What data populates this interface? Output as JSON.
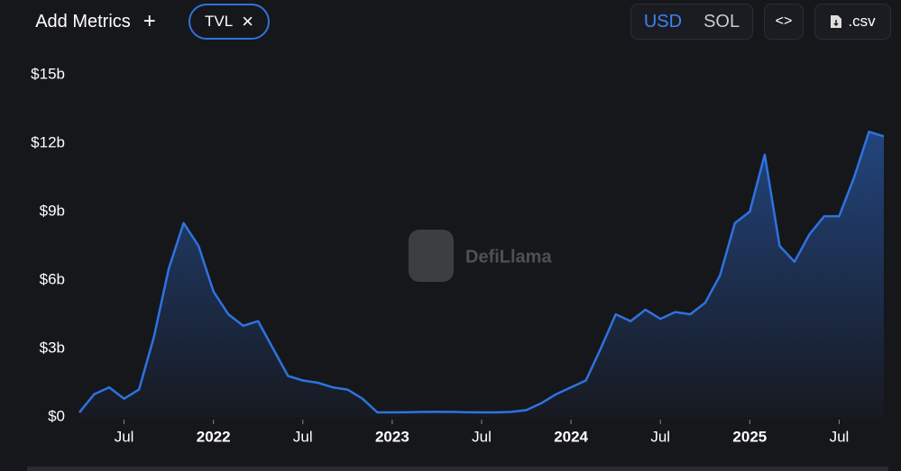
{
  "toolbar": {
    "add_metrics": "Add Metrics",
    "add_icon": "+",
    "metric": "TVL",
    "remove_icon": "×",
    "currencies": [
      "USD",
      "SOL"
    ],
    "embed": "<>",
    "csv": ".csv"
  },
  "watermark": "DefiLlama",
  "chart_data": {
    "type": "area",
    "x": [
      "2021-04",
      "2021-05",
      "2021-06",
      "2021-07",
      "2021-08",
      "2021-09",
      "2021-10",
      "2021-11",
      "2021-12",
      "2022-01",
      "2022-02",
      "2022-03",
      "2022-04",
      "2022-05",
      "2022-06",
      "2022-07",
      "2022-08",
      "2022-09",
      "2022-10",
      "2022-11",
      "2022-12",
      "2023-01",
      "2023-02",
      "2023-03",
      "2023-04",
      "2023-05",
      "2023-06",
      "2023-07",
      "2023-08",
      "2023-09",
      "2023-10",
      "2023-11",
      "2023-12",
      "2024-01",
      "2024-02",
      "2024-03",
      "2024-04",
      "2024-05",
      "2024-06",
      "2024-07",
      "2024-08",
      "2024-09",
      "2024-10",
      "2024-11",
      "2024-12",
      "2025-01",
      "2025-02",
      "2025-03",
      "2025-04",
      "2025-05",
      "2025-06",
      "2025-07",
      "2025-08",
      "2025-09",
      "2025-10"
    ],
    "series": [
      {
        "name": "TVL",
        "color": "#2f72e0",
        "values": [
          0.2,
          1.0,
          1.3,
          0.8,
          1.2,
          3.5,
          6.5,
          8.5,
          7.5,
          5.5,
          4.5,
          4.0,
          4.2,
          3.0,
          1.8,
          1.6,
          1.5,
          1.3,
          1.2,
          0.8,
          0.2,
          0.2,
          0.21,
          0.22,
          0.23,
          0.22,
          0.21,
          0.2,
          0.2,
          0.22,
          0.3,
          0.6,
          1.0,
          1.3,
          1.6,
          3.0,
          4.5,
          4.2,
          4.7,
          4.3,
          4.6,
          4.5,
          5.0,
          6.2,
          8.5,
          9.0,
          11.5,
          7.5,
          6.8,
          8.0,
          8.8,
          8.8,
          10.5,
          12.5,
          12.3
        ]
      }
    ],
    "xlim": [
      "2021-04",
      "2025-10"
    ],
    "xticks": [
      {
        "value": "2021-07",
        "label": "Jul"
      },
      {
        "value": "2022-01",
        "label": "2022"
      },
      {
        "value": "2022-07",
        "label": "Jul"
      },
      {
        "value": "2023-01",
        "label": "2023"
      },
      {
        "value": "2023-07",
        "label": "Jul"
      },
      {
        "value": "2024-01",
        "label": "2024"
      },
      {
        "value": "2024-07",
        "label": "Jul"
      },
      {
        "value": "2025-01",
        "label": "2025"
      },
      {
        "value": "2025-07",
        "label": "Jul"
      }
    ],
    "ylim": [
      0,
      15
    ],
    "yticks": [
      {
        "value": 0,
        "label": "$0"
      },
      {
        "value": 3,
        "label": "$3b"
      },
      {
        "value": 6,
        "label": "$6b"
      },
      {
        "value": 9,
        "label": "$9b"
      },
      {
        "value": 12,
        "label": "$12b"
      },
      {
        "value": 15,
        "label": "$15b"
      }
    ],
    "grid": false
  }
}
